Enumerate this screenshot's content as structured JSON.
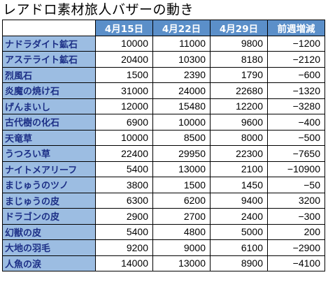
{
  "title": "レアドロ素材旅人バザーの動き",
  "columns": [
    "4月15日",
    "4月22日",
    "4月29日",
    "前週増減"
  ],
  "rows": [
    {
      "name": "ナドラダイト鉱石",
      "values": [
        "10000",
        "11000",
        "9800",
        "−1200"
      ]
    },
    {
      "name": "アステライト鉱石",
      "values": [
        "20400",
        "10300",
        "8180",
        "−2120"
      ]
    },
    {
      "name": "烈風石",
      "values": [
        "1500",
        "2390",
        "1790",
        "−600"
      ]
    },
    {
      "name": "炎魔の焼け石",
      "values": [
        "31000",
        "24000",
        "22680",
        "−1320"
      ]
    },
    {
      "name": "げんまいし",
      "values": [
        "12000",
        "15480",
        "12200",
        "−3280"
      ]
    },
    {
      "name": "古代樹の化石",
      "values": [
        "6900",
        "10000",
        "9600",
        "−400"
      ]
    },
    {
      "name": "天竜草",
      "values": [
        "10000",
        "8500",
        "8000",
        "−500"
      ]
    },
    {
      "name": "うつろい草",
      "values": [
        "22400",
        "29950",
        "22300",
        "−7650"
      ]
    },
    {
      "name": "ナイトメアリーフ",
      "values": [
        "5400",
        "13000",
        "2100",
        "−10900"
      ]
    },
    {
      "name": "まじゅうのツノ",
      "values": [
        "3800",
        "1500",
        "1450",
        "−50"
      ]
    },
    {
      "name": "まじゅうの皮",
      "values": [
        "6300",
        "6200",
        "9400",
        "3200"
      ]
    },
    {
      "name": "ドラゴンの皮",
      "values": [
        "2900",
        "2700",
        "2400",
        "−300"
      ]
    },
    {
      "name": "幻獣の皮",
      "values": [
        "5400",
        "4800",
        "5000",
        "200"
      ]
    },
    {
      "name": "大地の羽毛",
      "values": [
        "9200",
        "9000",
        "6100",
        "−2900"
      ]
    },
    {
      "name": "人魚の涙",
      "values": [
        "14000",
        "13000",
        "8900",
        "−4100"
      ]
    }
  ],
  "colors": {
    "header_bg": "#5b8fc9",
    "header_text": "#ffffff",
    "name_bg": "#9cbde2",
    "name_text": "#1c2f86"
  }
}
